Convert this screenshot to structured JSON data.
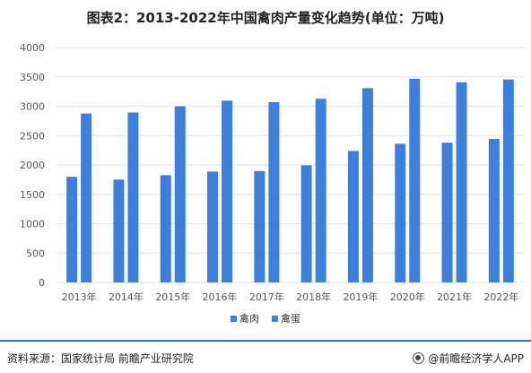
{
  "title": "图表2：2013-2022年中国禽肉产量变化趋势(单位：万吨)",
  "footer": {
    "source": "资料来源：国家统计局 前瞻产业研究院",
    "brand": "@前瞻经济学人APP"
  },
  "colors": {
    "bar": "#3d7fdc",
    "grid": "#e3e3e3",
    "axis_text": "#555555",
    "footer_line": "#2e6fd1"
  },
  "chart_data": {
    "type": "bar",
    "categories": [
      "2013年",
      "2014年",
      "2015年",
      "2016年",
      "2017年",
      "2018年",
      "2019年",
      "2020年",
      "2021年",
      "2022年"
    ],
    "series": [
      {
        "name": "禽肉",
        "values": [
          1798,
          1751,
          1826,
          1888,
          1897,
          1994,
          2239,
          2361,
          2380,
          2443
        ]
      },
      {
        "name": "禽蛋",
        "values": [
          2876,
          2894,
          2999,
          3095,
          3070,
          3128,
          3309,
          3468,
          3409,
          3456
        ]
      }
    ],
    "ylim": [
      0,
      4000
    ],
    "yticks": [
      0,
      500,
      1000,
      1500,
      2000,
      2500,
      3000,
      3500,
      4000
    ],
    "grid": true,
    "legend": "bottom"
  }
}
